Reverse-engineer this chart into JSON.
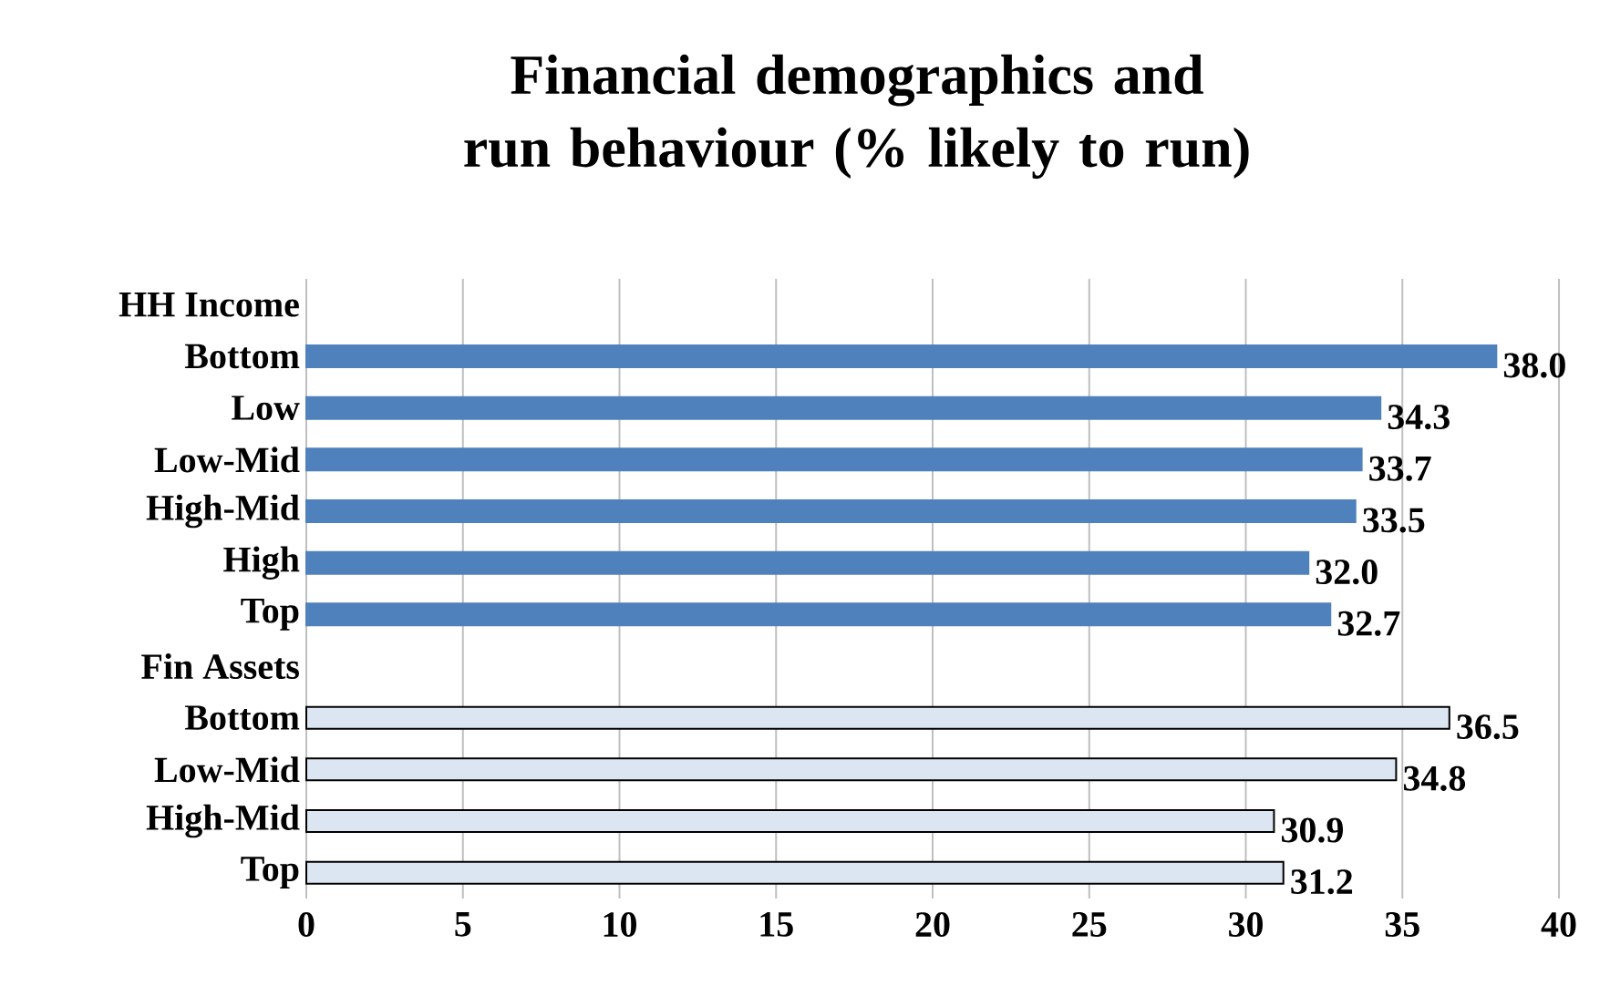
{
  "chart_data": {
    "type": "bar",
    "orientation": "horizontal",
    "title": "Financial demographics and run behaviour (% likely to run)",
    "categories": [
      "HH Income",
      "Bottom",
      "Low",
      "Low-Mid",
      "High-Mid",
      "High",
      "Top",
      "Fin Assets",
      "Bottom",
      "Low-Mid",
      "High-Mid",
      "Top"
    ],
    "values": [
      null,
      38.0,
      34.3,
      33.7,
      33.5,
      32.0,
      32.7,
      null,
      36.5,
      34.8,
      30.9,
      31.2
    ],
    "value_labels": [
      null,
      "38.0",
      "34.3",
      "33.7",
      "33.5",
      "32.0",
      "32.7",
      null,
      "36.5",
      "34.8",
      "30.9",
      "31.2"
    ],
    "colors": [
      "#4f81bd",
      "#4f81bd",
      "#4f81bd",
      "#4f81bd",
      "#4f81bd",
      "#4f81bd",
      "#4f81bd",
      "#dce6f2",
      "#dce6f2",
      "#dce6f2",
      "#dce6f2",
      "#dce6f2"
    ],
    "xlim": [
      0,
      40
    ],
    "xticks": [
      0,
      5,
      10,
      15,
      20,
      25,
      30,
      35,
      40
    ],
    "grid": "x"
  }
}
